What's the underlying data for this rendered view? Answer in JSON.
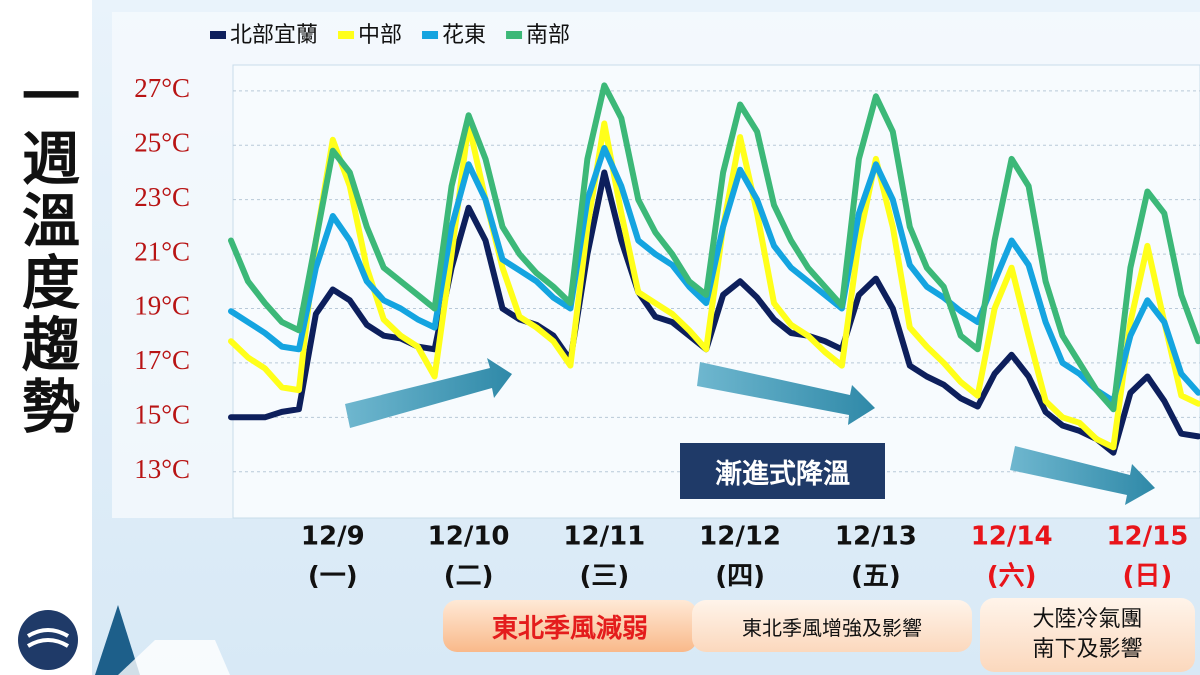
{
  "chart_data": {
    "type": "line",
    "title": "一週溫度趨勢",
    "categories": [
      null,
      null,
      null,
      null,
      null,
      null,
      "12/9",
      null,
      null,
      null,
      null,
      null,
      null,
      null,
      "12/10",
      null,
      null,
      null,
      null,
      null,
      null,
      null,
      "12/11",
      null,
      null,
      null,
      null,
      null,
      null,
      null,
      "12/12",
      null,
      null,
      null,
      null,
      null,
      null,
      null,
      "12/13",
      null,
      null,
      null,
      null,
      null,
      null,
      null,
      "12/14",
      null,
      null,
      null,
      null,
      null,
      null,
      null,
      "12/15",
      null,
      null,
      null
    ],
    "weekdays": [
      null,
      null,
      null,
      null,
      null,
      null,
      "(一)",
      null,
      null,
      null,
      null,
      null,
      null,
      null,
      "(二)",
      null,
      null,
      null,
      null,
      null,
      null,
      null,
      "(三)",
      null,
      null,
      null,
      null,
      null,
      null,
      null,
      "(四)",
      null,
      null,
      null,
      null,
      null,
      null,
      null,
      "(五)",
      null,
      null,
      null,
      null,
      null,
      null,
      null,
      "(六)",
      null,
      null,
      null,
      null,
      null,
      null,
      null,
      "(日)",
      null,
      null,
      null
    ],
    "highlight_from": "12/14",
    "highlight_color": "#e8141a",
    "ylim": [
      11.3,
      27.95
    ],
    "yticks": [
      {
        "value": 13,
        "label": "13°C"
      },
      {
        "value": 15,
        "label": "15°C"
      },
      {
        "value": 17,
        "label": "17°C"
      },
      {
        "value": 19,
        "label": "19°C"
      },
      {
        "value": 21,
        "label": "21°C"
      },
      {
        "value": 23,
        "label": "23°C"
      },
      {
        "value": 25,
        "label": "25°C"
      },
      {
        "value": 27,
        "label": "27°C"
      }
    ],
    "grid": true,
    "series": [
      {
        "name": "北部宜蘭",
        "color": "#0d1f5c",
        "values": [
          15.0,
          15.0,
          15.0,
          15.2,
          15.3,
          18.8,
          19.7,
          19.3,
          18.4,
          18.0,
          17.9,
          17.6,
          17.5,
          20.5,
          22.7,
          21.5,
          19.0,
          18.6,
          18.4,
          18.0,
          17.1,
          21.0,
          24.0,
          21.5,
          19.6,
          18.7,
          18.5,
          18.0,
          17.5,
          19.5,
          20.0,
          19.4,
          18.6,
          18.1,
          18.0,
          17.8,
          17.5,
          19.5,
          20.1,
          19.0,
          16.9,
          16.5,
          16.2,
          15.7,
          15.4,
          16.6,
          17.3,
          16.5,
          15.2,
          14.7,
          14.5,
          14.2,
          13.7,
          15.9,
          16.5,
          15.6,
          14.4,
          14.3
        ]
      },
      {
        "name": "中部",
        "color": "#ffff1a",
        "values": [
          17.8,
          17.2,
          16.8,
          16.1,
          16.0,
          21.5,
          25.2,
          23.5,
          20.5,
          18.6,
          18.0,
          17.6,
          16.5,
          21.0,
          25.8,
          23.0,
          20.5,
          18.7,
          18.3,
          17.8,
          16.9,
          22.0,
          25.8,
          22.5,
          19.6,
          19.2,
          18.8,
          18.2,
          17.5,
          22.0,
          25.3,
          22.5,
          19.2,
          18.4,
          18.0,
          17.4,
          16.9,
          21.5,
          24.5,
          22.0,
          18.3,
          17.6,
          17.0,
          16.3,
          15.8,
          19.0,
          20.5,
          18.0,
          15.6,
          15.0,
          14.8,
          14.2,
          13.9,
          18.5,
          21.3,
          18.5,
          15.8,
          15.5
        ]
      },
      {
        "name": "花東",
        "color": "#14a4e0",
        "values": [
          18.9,
          18.5,
          18.1,
          17.6,
          17.5,
          20.5,
          22.4,
          21.5,
          20.0,
          19.3,
          19.0,
          18.6,
          18.3,
          22.0,
          24.3,
          23.0,
          20.8,
          20.4,
          20.0,
          19.4,
          19.0,
          23.0,
          24.9,
          23.5,
          21.5,
          21.0,
          20.6,
          19.8,
          19.2,
          22.0,
          24.1,
          23.0,
          21.3,
          20.5,
          20.0,
          19.5,
          19.0,
          22.5,
          24.3,
          23.0,
          20.6,
          19.8,
          19.4,
          18.9,
          18.5,
          20.0,
          21.5,
          20.6,
          18.5,
          17.0,
          16.6,
          16.0,
          15.6,
          18.0,
          19.3,
          18.5,
          16.6,
          15.9
        ]
      },
      {
        "name": "南部",
        "color": "#3cb878",
        "values": [
          21.5,
          20.0,
          19.2,
          18.5,
          18.2,
          21.5,
          24.8,
          24.0,
          22.0,
          20.5,
          20.0,
          19.5,
          19.0,
          23.5,
          26.1,
          24.5,
          22.0,
          21.0,
          20.3,
          19.8,
          19.2,
          24.5,
          27.2,
          26.0,
          23.0,
          21.8,
          21.0,
          20.0,
          19.5,
          24.0,
          26.5,
          25.5,
          22.8,
          21.5,
          20.5,
          19.8,
          19.1,
          24.5,
          26.8,
          25.5,
          22.0,
          20.5,
          19.8,
          18.0,
          17.5,
          21.5,
          24.5,
          23.5,
          20.0,
          18.0,
          17.0,
          16.0,
          15.3,
          20.5,
          23.3,
          22.5,
          19.5,
          17.8
        ]
      }
    ],
    "annotations": [
      "漸進式降溫"
    ],
    "periods": [
      "東北季風減弱",
      "東北季風增強及影響",
      "大陸冷氣團\n南下及影響"
    ]
  }
}
